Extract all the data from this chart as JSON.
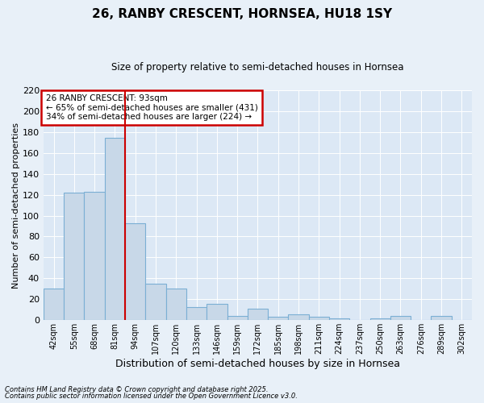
{
  "title_line1": "26, RANBY CRESCENT, HORNSEA, HU18 1SY",
  "title_line2": "Size of property relative to semi-detached houses in Hornsea",
  "xlabel": "Distribution of semi-detached houses by size in Hornsea",
  "ylabel": "Number of semi-detached properties",
  "categories": [
    "42sqm",
    "55sqm",
    "68sqm",
    "81sqm",
    "94sqm",
    "107sqm",
    "120sqm",
    "133sqm",
    "146sqm",
    "159sqm",
    "172sqm",
    "185sqm",
    "198sqm",
    "211sqm",
    "224sqm",
    "237sqm",
    "250sqm",
    "263sqm",
    "276sqm",
    "289sqm",
    "302sqm"
  ],
  "values": [
    30,
    122,
    123,
    175,
    93,
    35,
    30,
    12,
    15,
    4,
    11,
    3,
    5,
    3,
    1,
    0,
    1,
    4,
    0,
    4,
    0
  ],
  "bar_color": "#c8d8e8",
  "bar_edge_color": "#7bafd4",
  "vline_color": "#cc0000",
  "annotation_title": "26 RANBY CRESCENT: 93sqm",
  "annotation_line2": "← 65% of semi-detached houses are smaller (431)",
  "annotation_line3": "34% of semi-detached houses are larger (224) →",
  "annotation_box_color": "#cc0000",
  "ylim": [
    0,
    220
  ],
  "yticks": [
    0,
    20,
    40,
    60,
    80,
    100,
    120,
    140,
    160,
    180,
    200,
    220
  ],
  "footnote1": "Contains HM Land Registry data © Crown copyright and database right 2025.",
  "footnote2": "Contains public sector information licensed under the Open Government Licence v3.0.",
  "bg_color": "#e8f0f8",
  "plot_bg_color": "#dce8f5"
}
